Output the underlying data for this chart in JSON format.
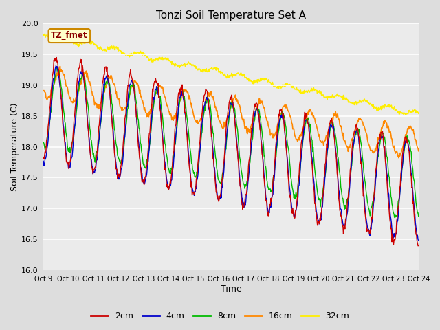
{
  "title": "Tonzi Soil Temperature Set A",
  "xlabel": "Time",
  "ylabel": "Soil Temperature (C)",
  "ylim": [
    16.0,
    20.0
  ],
  "yticks": [
    16.0,
    16.5,
    17.0,
    17.5,
    18.0,
    18.5,
    19.0,
    19.5,
    20.0
  ],
  "colors": {
    "2cm": "#cc0000",
    "4cm": "#0000cc",
    "8cm": "#00bb00",
    "16cm": "#ff8800",
    "32cm": "#ffee00"
  },
  "legend_label": "TZ_fmet",
  "background_color": "#dddddd",
  "plot_bg": "#ebebeb",
  "n_points": 720,
  "start_day": 9,
  "end_day": 24,
  "trend_start_2cm": 18.65,
  "trend_end_2cm": 17.25,
  "trend_start_4cm": 18.55,
  "trend_end_4cm": 17.25,
  "trend_start_8cm": 18.65,
  "trend_end_8cm": 17.45,
  "trend_start_16cm": 19.05,
  "trend_end_16cm": 18.05,
  "trend_start_32cm": 19.82,
  "trend_end_32cm": 18.52,
  "amp_2cm": 0.85,
  "amp_4cm": 0.8,
  "amp_8cm": 0.65,
  "amp_16cm": 0.25,
  "amp_32cm": 0.04,
  "phase_2cm": 0.0,
  "phase_4cm": 0.15,
  "phase_8cm": 0.4,
  "phase_16cm": 1.1,
  "phase_32cm": 2.2,
  "xtick_days": [
    9,
    10,
    11,
    12,
    13,
    14,
    15,
    16,
    17,
    18,
    19,
    20,
    21,
    22,
    23,
    24
  ],
  "xtick_labels": [
    "Oct 9",
    "Oct 10",
    "Oct 11",
    "Oct 12",
    "Oct 13",
    "Oct 14",
    "Oct 15",
    "Oct 16",
    "Oct 17",
    "Oct 18",
    "Oct 19",
    "Oct 20",
    "Oct 21",
    "Oct 22",
    "Oct 23",
    "Oct 24"
  ]
}
